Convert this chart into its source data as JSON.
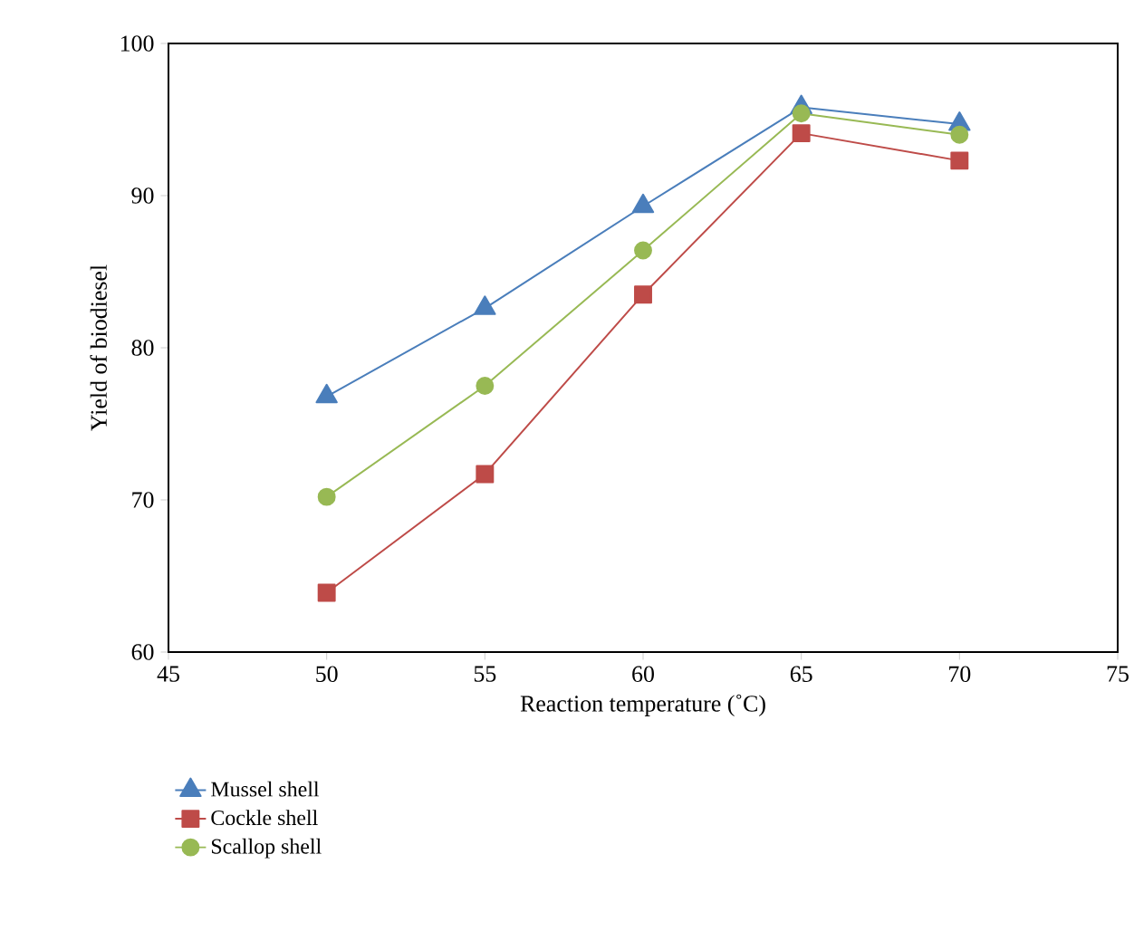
{
  "chart_data": {
    "type": "line",
    "xlabel": "Reaction temperature (˚C)",
    "ylabel": "Yield of biodiesel",
    "x": [
      50,
      55,
      60,
      65,
      70
    ],
    "series": [
      {
        "name": "Mussel shell",
        "color": "#4a7ebb",
        "marker": "triangle",
        "values": [
          76.8,
          82.6,
          89.3,
          95.8,
          94.7
        ]
      },
      {
        "name": "Cockle shell",
        "color": "#be4b48",
        "marker": "square",
        "values": [
          63.9,
          71.7,
          83.5,
          94.1,
          92.3
        ]
      },
      {
        "name": "Scallop shell",
        "color": "#98b954",
        "marker": "circle",
        "values": [
          70.2,
          77.5,
          86.4,
          95.4,
          94.0
        ]
      }
    ],
    "xlim": [
      45,
      75
    ],
    "ylim": [
      60,
      100
    ],
    "xticks": [
      45,
      50,
      55,
      60,
      65,
      70,
      75
    ],
    "yticks": [
      60,
      70,
      80,
      90,
      100
    ],
    "grid": false,
    "legend": "bottom",
    "line_style": "solid"
  }
}
